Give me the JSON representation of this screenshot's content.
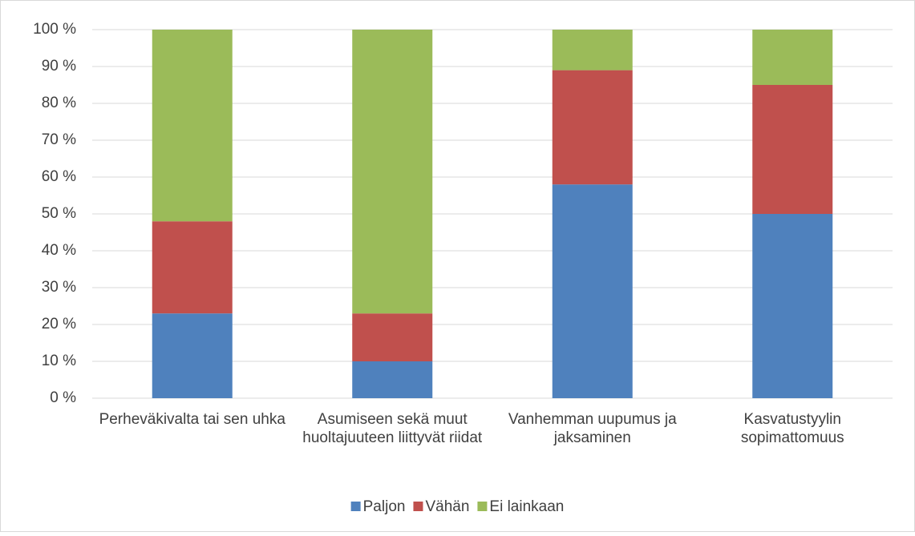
{
  "chart_data": {
    "type": "stacked_bar",
    "categories": [
      "Perheväkivalta tai sen uhka",
      "Asumiseen sekä muut huoltajuuteen liittyvät riidat",
      "Vanhemman uupumus ja jaksaminen",
      "Kasvatustyylin sopimattomuus"
    ],
    "series": [
      {
        "name": "Paljon",
        "color": "#4f81bd",
        "values": [
          23,
          10,
          58,
          50
        ]
      },
      {
        "name": "Vähän",
        "color": "#c0504d",
        "values": [
          25,
          13,
          31,
          35
        ]
      },
      {
        "name": "Ei lainkaan",
        "color": "#9bbb59",
        "values": [
          52,
          77,
          11,
          15
        ]
      }
    ],
    "ylim": [
      0,
      100
    ],
    "yticks": [
      {
        "value": 0,
        "label": "0 %"
      },
      {
        "value": 10,
        "label": "10 %"
      },
      {
        "value": 20,
        "label": "20 %"
      },
      {
        "value": 30,
        "label": "30 %"
      },
      {
        "value": 40,
        "label": "40 %"
      },
      {
        "value": 50,
        "label": "50 %"
      },
      {
        "value": 60,
        "label": "60 %"
      },
      {
        "value": 70,
        "label": "70 %"
      },
      {
        "value": 80,
        "label": "80 %"
      },
      {
        "value": 90,
        "label": "90 %"
      },
      {
        "value": 100,
        "label": "100 %"
      }
    ],
    "grid": true,
    "legend": "bottom"
  }
}
